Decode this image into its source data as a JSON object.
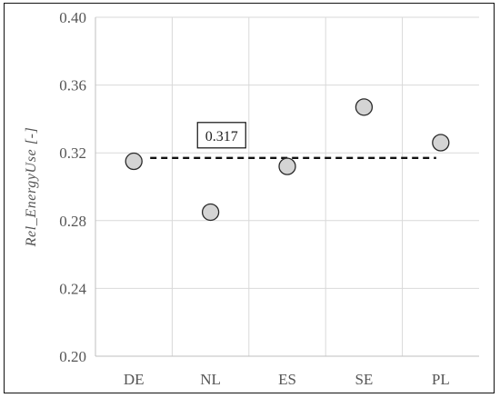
{
  "chart_data": {
    "type": "scatter",
    "categories": [
      "DE",
      "NL",
      "ES",
      "SE",
      "PL"
    ],
    "series": [
      {
        "values": [
          0.315,
          0.285,
          0.312,
          0.347,
          0.326
        ]
      }
    ],
    "reference_line": {
      "value": 0.317,
      "label": "0.317",
      "style": "dashed"
    },
    "title": "",
    "xlabel": "",
    "ylabel": "Rel_EnergyUse [-]",
    "ylim": [
      0.2,
      0.4
    ],
    "yticks": [
      "0.40",
      "0.36",
      "0.32",
      "0.28",
      "0.24",
      "0.20"
    ],
    "grid": true,
    "legend": "none",
    "colors": {
      "marker_fill": "#d4d4d4",
      "marker_stroke": "#2a2a2a",
      "grid": "#d9d9d9",
      "axis": "#bfbfbf",
      "reference_line": "#111111"
    }
  }
}
